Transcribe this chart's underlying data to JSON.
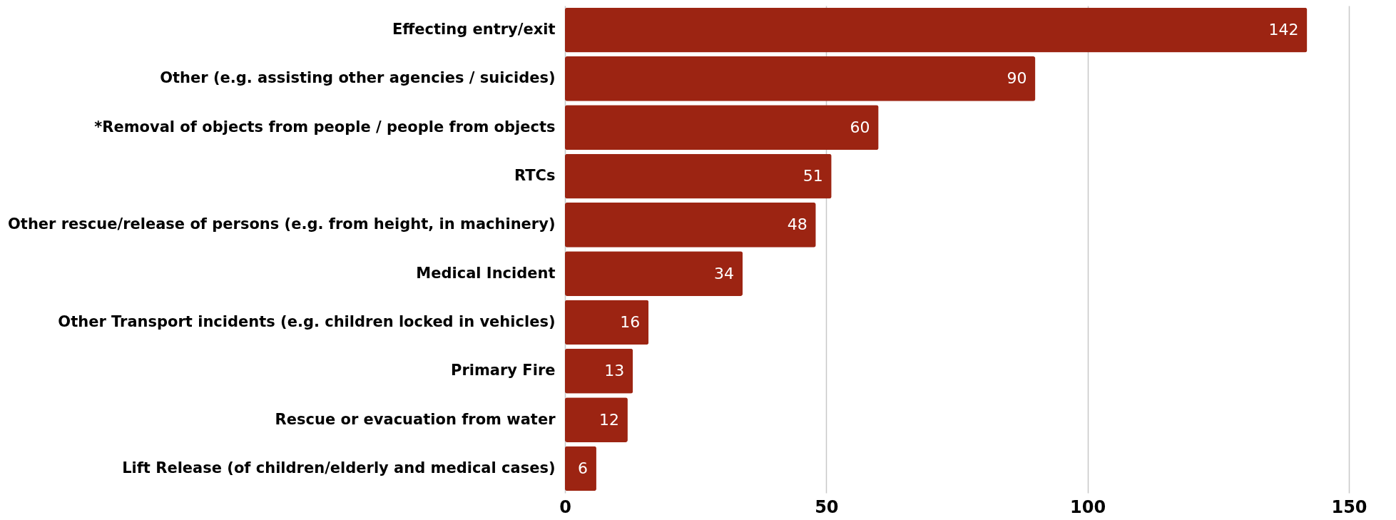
{
  "chart_data": {
    "type": "bar",
    "orientation": "horizontal",
    "categories": [
      "Effecting entry/exit",
      "Other (e.g. assisting other agencies / suicides)",
      "*Removal of objects from people / people from objects",
      "RTCs",
      "Other rescue/release of persons (e.g. from height, in machinery)",
      "Medical Incident",
      "Other Transport incidents (e.g. children locked in vehicles)",
      "Primary Fire",
      "Rescue or evacuation from water",
      "Lift Release (of children/elderly and medical cases)"
    ],
    "values": [
      142,
      90,
      60,
      51,
      48,
      34,
      16,
      13,
      12,
      6
    ],
    "color": "#9c2412",
    "xlim": [
      0,
      150
    ],
    "xticks": [
      0,
      50,
      100,
      150
    ],
    "grid": "x",
    "data_labels": true
  }
}
